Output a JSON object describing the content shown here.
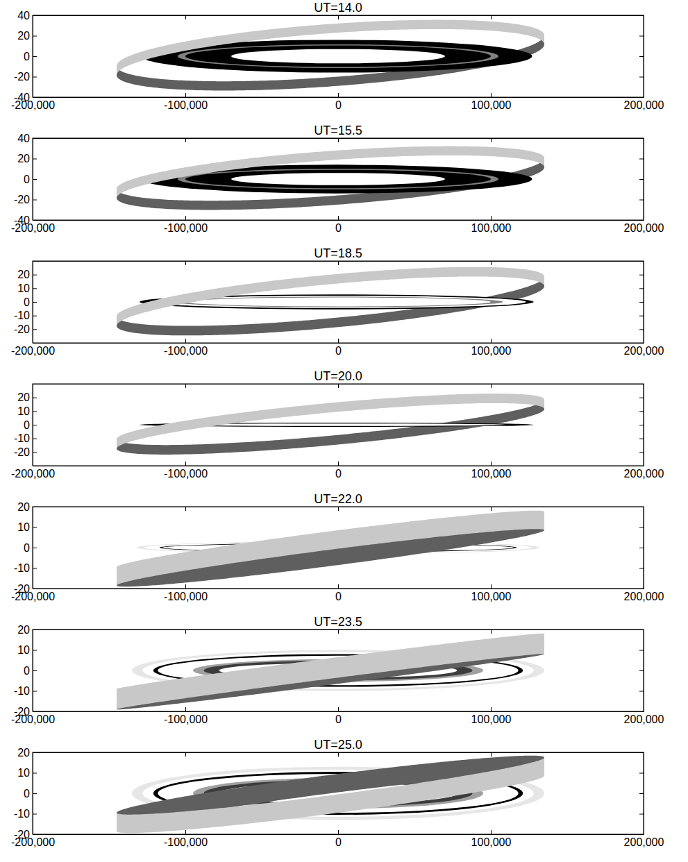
{
  "chart_data": [
    {
      "type": "ring",
      "title": "UT=14.0",
      "xlim": [
        -200000,
        200000
      ],
      "xticks": [
        {
          "value": -200000,
          "label": "-200,000"
        },
        {
          "value": -100000,
          "label": "-100,000"
        },
        0,
        {
          "value": 100000,
          "label": "100,000"
        },
        {
          "value": 200000,
          "label": "200,000"
        }
      ],
      "ylim": [
        -40,
        40
      ],
      "yticks": [
        -40,
        -20,
        0,
        20,
        40
      ],
      "series": [
        {
          "type": "arc",
          "color": "#5f5f5f",
          "x": [
            -145000,
            135000
          ],
          "values": [
            -14,
            16
          ],
          "half_height": -26,
          "thickness": 9
        },
        {
          "type": "ellipse",
          "color": "#000000",
          "cx": -1000,
          "cy": 0,
          "rx": 128000,
          "ry": 16
        },
        {
          "type": "ellipse",
          "color": "#808080",
          "cx": 0,
          "cy": 0,
          "rx": 105000,
          "ry": 11.5
        },
        {
          "type": "ellipse",
          "color": "#000000",
          "cx": 0,
          "cy": 0,
          "rx": 100000,
          "ry": 10.5
        },
        {
          "type": "ellipse",
          "color": "#ffffff",
          "cx": 0,
          "cy": 0,
          "rx": 70000,
          "ry": 7
        },
        {
          "type": "arc",
          "color": "#c8c8c8",
          "x": [
            -145000,
            135000
          ],
          "values": [
            -14,
            16
          ],
          "half_height": 26,
          "thickness": 9
        }
      ]
    },
    {
      "type": "ring",
      "title": "UT=15.5",
      "xlim": [
        -200000,
        200000
      ],
      "xticks": [
        {
          "value": -200000,
          "label": "-200,000"
        },
        {
          "value": -100000,
          "label": "-100,000"
        },
        0,
        {
          "value": 100000,
          "label": "100,000"
        },
        {
          "value": 200000,
          "label": "200,000"
        }
      ],
      "ylim": [
        -40,
        40
      ],
      "yticks": [
        -40,
        -20,
        0,
        20,
        40
      ],
      "series": [
        {
          "type": "arc",
          "color": "#5f5f5f",
          "x": [
            -145000,
            135000
          ],
          "values": [
            -14,
            16
          ],
          "half_height": -22,
          "thickness": 9
        },
        {
          "type": "ellipse",
          "color": "#000000",
          "cx": -1000,
          "cy": 0,
          "rx": 128000,
          "ry": 14
        },
        {
          "type": "ellipse",
          "color": "#808080",
          "cx": 0,
          "cy": 0,
          "rx": 105000,
          "ry": 10
        },
        {
          "type": "ellipse",
          "color": "#000000",
          "cx": 0,
          "cy": 0,
          "rx": 100000,
          "ry": 9
        },
        {
          "type": "ellipse",
          "color": "#ffffff",
          "cx": 0,
          "cy": 0,
          "rx": 70000,
          "ry": 6
        },
        {
          "type": "arc",
          "color": "#c8c8c8",
          "x": [
            -145000,
            135000
          ],
          "values": [
            -14,
            16
          ],
          "half_height": 22,
          "thickness": 9
        }
      ]
    },
    {
      "type": "ring",
      "title": "UT=18.5",
      "xlim": [
        -200000,
        200000
      ],
      "xticks": [
        {
          "value": -200000,
          "label": "-200,000"
        },
        {
          "value": -100000,
          "label": "-100,000"
        },
        0,
        {
          "value": 100000,
          "label": "100,000"
        },
        {
          "value": 200000,
          "label": "200,000"
        }
      ],
      "ylim": [
        -30,
        30
      ],
      "yticks": [
        -20,
        -10,
        0,
        10,
        20
      ],
      "series": [
        {
          "type": "arc",
          "color": "#5f5f5f",
          "x": [
            -145000,
            135000
          ],
          "values": [
            -14,
            15
          ],
          "half_height": -16,
          "thickness": 7
        },
        {
          "type": "ellipse",
          "color": "#000000",
          "cx": -1000,
          "cy": 0,
          "rx": 129000,
          "ry": 5.5
        },
        {
          "type": "ellipse",
          "color": "#ffffff",
          "cx": 0,
          "cy": 0,
          "rx": 123000,
          "ry": 4.5
        },
        {
          "type": "ellipse",
          "color": "#808080",
          "cx": 0,
          "cy": 0,
          "rx": 108000,
          "ry": 3.8
        },
        {
          "type": "ellipse",
          "color": "#ffffff",
          "cx": 0,
          "cy": 0,
          "rx": 100000,
          "ry": 3.3
        },
        {
          "type": "arc",
          "color": "#c8c8c8",
          "x": [
            -145000,
            135000
          ],
          "values": [
            -14,
            15
          ],
          "half_height": 16,
          "thickness": 7
        }
      ]
    },
    {
      "type": "ring",
      "title": "UT=20.0",
      "xlim": [
        -200000,
        200000
      ],
      "xticks": [
        {
          "value": -200000,
          "label": "-200,000"
        },
        {
          "value": -100000,
          "label": "-100,000"
        },
        0,
        {
          "value": 100000,
          "label": "100,000"
        },
        {
          "value": 200000,
          "label": "200,000"
        }
      ],
      "ylim": [
        -30,
        30
      ],
      "yticks": [
        -20,
        -10,
        0,
        10,
        20
      ],
      "series": [
        {
          "type": "arc",
          "color": "#5f5f5f",
          "x": [
            -145000,
            135000
          ],
          "values": [
            -14,
            15
          ],
          "half_height": -12,
          "thickness": 7
        },
        {
          "type": "ellipse",
          "color": "#000000",
          "cx": -1000,
          "cy": 0,
          "rx": 129000,
          "ry": 1.5
        },
        {
          "type": "ellipse",
          "color": "#ffffff",
          "cx": 0,
          "cy": 0,
          "rx": 110000,
          "ry": 0.9
        },
        {
          "type": "arc",
          "color": "#c8c8c8",
          "x": [
            -145000,
            135000
          ],
          "values": [
            -14,
            15
          ],
          "half_height": 12,
          "thickness": 7
        }
      ]
    },
    {
      "type": "ring",
      "title": "UT=22.0",
      "xlim": [
        -200000,
        200000
      ],
      "xticks": [
        {
          "value": -200000,
          "label": "-200,000"
        },
        {
          "value": -100000,
          "label": "-100,000"
        },
        0,
        {
          "value": 100000,
          "label": "100,000"
        },
        {
          "value": 200000,
          "label": "200,000"
        }
      ],
      "ylim": [
        -20,
        20
      ],
      "yticks": [
        -20,
        -10,
        0,
        10,
        20
      ],
      "series": [
        {
          "type": "ellipse",
          "color": "#e6e6e6",
          "cx": 0,
          "cy": 0,
          "rx": 132000,
          "ry": 3
        },
        {
          "type": "ellipse",
          "color": "#ffffff",
          "cx": 0,
          "cy": 0,
          "rx": 127000,
          "ry": 2.6
        },
        {
          "type": "ellipse",
          "color": "#000000",
          "cx": 0,
          "cy": 0,
          "rx": 117000,
          "ry": 2.2
        },
        {
          "type": "ellipse",
          "color": "#ffffff",
          "cx": 0,
          "cy": 0,
          "rx": 115000,
          "ry": 1.8
        },
        {
          "type": "ellipse",
          "color": "#000000",
          "cx": 0,
          "cy": 0,
          "rx": 62000,
          "ry": 0.9
        },
        {
          "type": "arc",
          "color": "#5f5f5f",
          "x": [
            -145000,
            135000
          ],
          "values": [
            -14,
            13
          ],
          "half_height": -4,
          "thickness": 9
        },
        {
          "type": "arc",
          "color": "#c8c8c8",
          "x": [
            -145000,
            135000
          ],
          "values": [
            -14,
            13
          ],
          "half_height": 4,
          "thickness": 9
        }
      ]
    },
    {
      "type": "ring",
      "title": "UT=23.5",
      "xlim": [
        -200000,
        200000
      ],
      "xticks": [
        {
          "value": -200000,
          "label": "-200,000"
        },
        {
          "value": -100000,
          "label": "-100,000"
        },
        0,
        {
          "value": 100000,
          "label": "100,000"
        },
        {
          "value": 200000,
          "label": "200,000"
        }
      ],
      "ylim": [
        -20,
        20
      ],
      "yticks": [
        -20,
        -10,
        0,
        10,
        20
      ],
      "series": [
        {
          "type": "ellipse",
          "color": "#e6e6e6",
          "cx": 0,
          "cy": 0,
          "rx": 135000,
          "ry": 10
        },
        {
          "type": "ellipse",
          "color": "#ffffff",
          "cx": 0,
          "cy": 0,
          "rx": 128000,
          "ry": 9
        },
        {
          "type": "ellipse",
          "color": "#000000",
          "cx": 0,
          "cy": 0,
          "rx": 121000,
          "ry": 8
        },
        {
          "type": "ellipse",
          "color": "#ffffff",
          "cx": 0,
          "cy": 0,
          "rx": 118000,
          "ry": 7.2
        },
        {
          "type": "ellipse",
          "color": "#a0a0a0",
          "cx": 0,
          "cy": 0,
          "rx": 95000,
          "ry": 5.5
        },
        {
          "type": "ellipse",
          "color": "#3c3c3c",
          "cx": 0,
          "cy": 0,
          "rx": 88000,
          "ry": 4.8
        },
        {
          "type": "ellipse",
          "color": "#ffffff",
          "cx": 0,
          "cy": 0,
          "rx": 78000,
          "ry": 3.6
        },
        {
          "type": "arc",
          "color": "#5f5f5f",
          "x": [
            -145000,
            135000
          ],
          "values": [
            -14,
            13
          ],
          "half_height": -1.5,
          "thickness": 10
        },
        {
          "type": "arc",
          "color": "#c8c8c8",
          "x": [
            -145000,
            135000
          ],
          "values": [
            -14,
            13
          ],
          "half_height": 1.5,
          "thickness": 10
        }
      ]
    },
    {
      "type": "ring",
      "title": "UT=25.0",
      "xlim": [
        -200000,
        200000
      ],
      "xticks": [
        {
          "value": -200000,
          "label": "-200,000"
        },
        {
          "value": -100000,
          "label": "-100,000"
        },
        0,
        {
          "value": 100000,
          "label": "100,000"
        },
        {
          "value": 200000,
          "label": "200,000"
        }
      ],
      "ylim": [
        -20,
        20
      ],
      "yticks": [
        -20,
        -10,
        0,
        10,
        20
      ],
      "series": [
        {
          "type": "ellipse",
          "color": "#e6e6e6",
          "cx": 0,
          "cy": 0,
          "rx": 135000,
          "ry": 13
        },
        {
          "type": "ellipse",
          "color": "#ffffff",
          "cx": 0,
          "cy": 0,
          "rx": 128000,
          "ry": 11.5
        },
        {
          "type": "ellipse",
          "color": "#000000",
          "cx": 0,
          "cy": 0,
          "rx": 121000,
          "ry": 10.5
        },
        {
          "type": "ellipse",
          "color": "#ffffff",
          "cx": 0,
          "cy": 0,
          "rx": 118000,
          "ry": 9.5
        },
        {
          "type": "ellipse",
          "color": "#a0a0a0",
          "cx": 0,
          "cy": 0,
          "rx": 95000,
          "ry": 7.5
        },
        {
          "type": "ellipse",
          "color": "#3c3c3c",
          "cx": 0,
          "cy": 0,
          "rx": 88000,
          "ry": 6.5
        },
        {
          "type": "ellipse",
          "color": "#ffffff",
          "cx": 0,
          "cy": 0,
          "rx": 78000,
          "ry": 5
        },
        {
          "type": "arc",
          "color": "#5f5f5f",
          "x": [
            -145000,
            135000
          ],
          "values": [
            -14,
            13
          ],
          "half_height": 5,
          "thickness": 9
        },
        {
          "type": "arc",
          "color": "#c8c8c8",
          "x": [
            -145000,
            135000
          ],
          "values": [
            -14,
            13
          ],
          "half_height": -5,
          "thickness": 9
        }
      ]
    }
  ]
}
